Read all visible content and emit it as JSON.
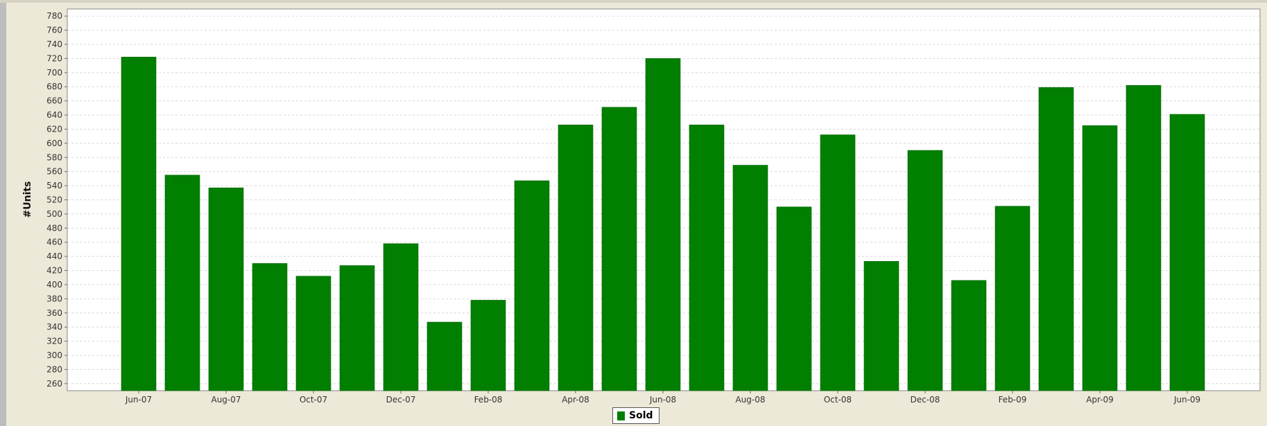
{
  "chart_data": {
    "type": "bar",
    "title": "",
    "xlabel": "",
    "ylabel": "#Units",
    "ylim": [
      250,
      790
    ],
    "yticks": [
      260,
      280,
      300,
      320,
      340,
      360,
      380,
      400,
      420,
      440,
      460,
      480,
      500,
      520,
      540,
      560,
      580,
      600,
      620,
      640,
      660,
      680,
      700,
      720,
      740,
      760,
      780
    ],
    "grid": true,
    "legend_position": "bottom-center",
    "bar_color": "#007f00",
    "categories": [
      "Jun-07",
      "Jul-07",
      "Aug-07",
      "Sep-07",
      "Oct-07",
      "Nov-07",
      "Dec-07",
      "Jan-08",
      "Feb-08",
      "Mar-08",
      "Apr-08",
      "May-08",
      "Jun-08",
      "Jul-08",
      "Aug-08",
      "Sep-08",
      "Oct-08",
      "Nov-08",
      "Dec-08",
      "Jan-09",
      "Feb-09",
      "Mar-09",
      "Apr-09",
      "May-09",
      "Jun-09"
    ],
    "xtick_labels": [
      "Jun-07",
      "",
      "Aug-07",
      "",
      "Oct-07",
      "",
      "Dec-07",
      "",
      "Feb-08",
      "",
      "Apr-08",
      "",
      "Jun-08",
      "",
      "Aug-08",
      "",
      "Oct-08",
      "",
      "Dec-08",
      "",
      "Feb-09",
      "",
      "Apr-09",
      "",
      "Jun-09"
    ],
    "series": [
      {
        "name": "Sold",
        "values": [
          722,
          555,
          537,
          430,
          412,
          427,
          458,
          347,
          378,
          547,
          626,
          651,
          720,
          626,
          569,
          510,
          612,
          433,
          590,
          406,
          511,
          679,
          625,
          682,
          641
        ]
      }
    ]
  }
}
